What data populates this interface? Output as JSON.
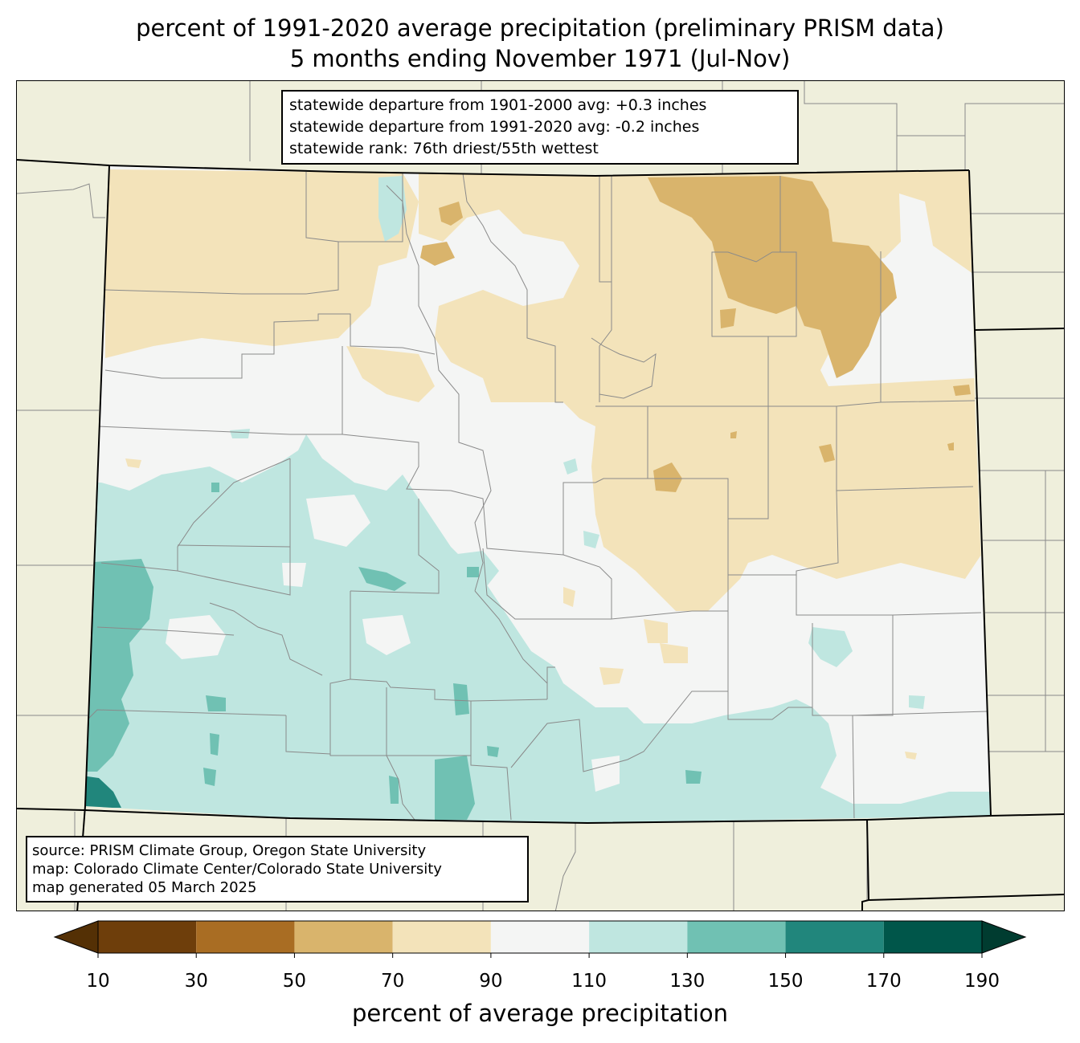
{
  "title": {
    "line1": "percent of 1991-2020 average precipitation (preliminary PRISM data)",
    "line2": "5 months ending November 1971 (Jul-Nov)"
  },
  "stats": {
    "line1": "statewide departure from 1901-2000 avg: +0.3 inches",
    "line2": "statewide departure from 1991-2020 avg: -0.2 inches",
    "line3": "statewide rank: 76th driest/55th wettest"
  },
  "source": {
    "line1": "source: PRISM Climate Group, Oregon State University",
    "line2": "map: Colorado Climate Center/Colorado State University",
    "line3": "map generated 05 March 2025"
  },
  "colorbar": {
    "label": "percent of average precipitation",
    "ticks": [
      "10",
      "30",
      "50",
      "70",
      "90",
      "110",
      "130",
      "150",
      "170",
      "190"
    ],
    "under_color": "#543005",
    "over_color": "#003c30",
    "bins": [
      {
        "from": 10,
        "to": 30,
        "color": "#6e3e0b"
      },
      {
        "from": 30,
        "to": 50,
        "color": "#a96d23"
      },
      {
        "from": 50,
        "to": 70,
        "color": "#d9b46c"
      },
      {
        "from": 70,
        "to": 90,
        "color": "#f3e3ba"
      },
      {
        "from": 90,
        "to": 110,
        "color": "#f4f5f4"
      },
      {
        "from": 110,
        "to": 130,
        "color": "#bfe6e0"
      },
      {
        "from": 130,
        "to": 150,
        "color": "#70c1b3"
      },
      {
        "from": 150,
        "to": 170,
        "color": "#21867c"
      },
      {
        "from": 170,
        "to": 190,
        "color": "#00564a"
      }
    ]
  },
  "map_colors": {
    "land_outside": "#efefdc",
    "county_line": "#8a8a8a",
    "state_line": "#000000"
  }
}
